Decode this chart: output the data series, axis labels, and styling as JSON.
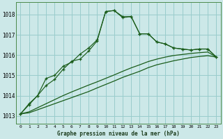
{
  "title": "Graphe pression niveau de la mer (hPa)",
  "background_color": "#cce8e8",
  "grid_color": "#99cccc",
  "line_color": "#1a5c1a",
  "ylim": [
    1012.6,
    1018.6
  ],
  "yticks": [
    1013,
    1014,
    1015,
    1016,
    1017,
    1018
  ],
  "xlim": [
    -0.5,
    23.5
  ],
  "series1": [
    1013.1,
    1013.6,
    1014.0,
    1014.5,
    1014.8,
    1015.3,
    1015.7,
    1015.8,
    1016.2,
    1016.7,
    1018.15,
    1018.2,
    1017.85,
    1017.9,
    1017.05,
    1017.05,
    1016.65,
    1016.55,
    1016.35,
    1016.3,
    1016.25,
    1016.3,
    1016.3,
    1015.9
  ],
  "series2": [
    1013.1,
    1013.55,
    1014.0,
    1014.85,
    1015.0,
    1015.45,
    1015.65,
    1016.05,
    1016.35,
    1016.75,
    1018.15,
    1018.2,
    1017.9,
    1017.9,
    1017.05,
    1017.05,
    1016.65,
    1016.55,
    1016.35,
    1016.3,
    1016.25,
    1016.3,
    1016.3,
    1015.9
  ],
  "series3": [
    1013.1,
    1013.15,
    1013.3,
    1013.45,
    1013.6,
    1013.75,
    1013.9,
    1014.05,
    1014.2,
    1014.38,
    1014.55,
    1014.72,
    1014.9,
    1015.05,
    1015.2,
    1015.38,
    1015.52,
    1015.62,
    1015.72,
    1015.8,
    1015.88,
    1015.93,
    1015.97,
    1015.9
  ],
  "series4": [
    1013.1,
    1013.2,
    1013.4,
    1013.6,
    1013.8,
    1014.0,
    1014.18,
    1014.35,
    1014.52,
    1014.68,
    1014.85,
    1015.02,
    1015.2,
    1015.37,
    1015.52,
    1015.68,
    1015.8,
    1015.9,
    1015.98,
    1016.03,
    1016.08,
    1016.12,
    1016.15,
    1015.9
  ],
  "x_labels": [
    "0",
    "1",
    "2",
    "3",
    "4",
    "5",
    "6",
    "7",
    "8",
    "9",
    "10",
    "11",
    "12",
    "13",
    "14",
    "15",
    "16",
    "17",
    "18",
    "19",
    "20",
    "21",
    "22",
    "23"
  ]
}
